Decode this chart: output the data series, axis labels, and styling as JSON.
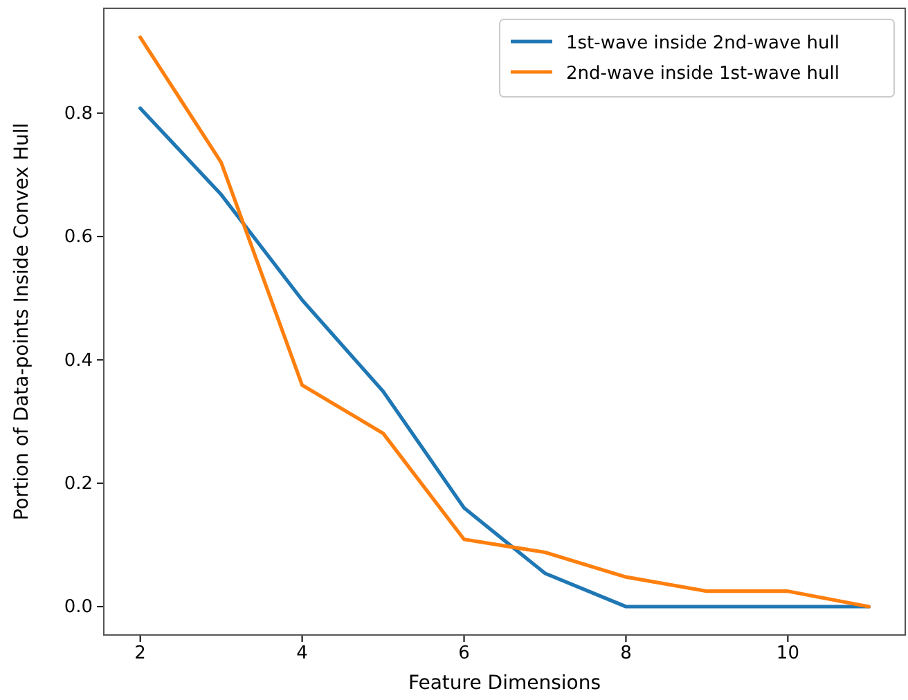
{
  "chart_data": {
    "type": "line",
    "xlabel": "Feature Dimensions",
    "ylabel": "Portion of Data-points Inside Convex Hull",
    "x": [
      2,
      3,
      4,
      5,
      6,
      7,
      8,
      9,
      10,
      11
    ],
    "series": [
      {
        "name": "1st-wave inside 2nd-wave hull",
        "color": "#1f77b4",
        "values": [
          0.808,
          0.668,
          0.497,
          0.349,
          0.16,
          0.054,
          0,
          0,
          0,
          0
        ]
      },
      {
        "name": "2nd-wave inside 1st-wave hull",
        "color": "#ff7f0e",
        "values": [
          0.923,
          0.72,
          0.359,
          0.281,
          0.109,
          0.088,
          0.048,
          0.025,
          0.025,
          0
        ]
      }
    ],
    "xlim": [
      1.55,
      11.45
    ],
    "ylim": [
      -0.046,
      0.97
    ],
    "xticks": [
      2,
      4,
      6,
      8,
      10
    ],
    "yticks": [
      {
        "value": 0,
        "label": "0.0"
      },
      {
        "value": 0.2,
        "label": "0.2"
      },
      {
        "value": 0.4,
        "label": "0.4"
      },
      {
        "value": 0.6,
        "label": "0.6"
      },
      {
        "value": 0.8,
        "label": "0.8"
      }
    ],
    "legend": "top right",
    "grid": false,
    "marker": "none",
    "line_style": "solid"
  }
}
